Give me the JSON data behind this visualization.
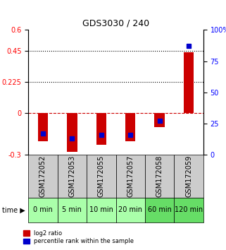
{
  "title": "GDS3030 / 240",
  "samples": [
    "GSM172052",
    "GSM172053",
    "GSM172055",
    "GSM172057",
    "GSM172058",
    "GSM172059"
  ],
  "time_labels": [
    "0 min",
    "5 min",
    "10 min",
    "20 min",
    "60 min",
    "120 min"
  ],
  "log2_ratio": [
    -0.2,
    -0.28,
    -0.23,
    -0.2,
    -0.1,
    0.44
  ],
  "percentile_rank": [
    17,
    13,
    16,
    16,
    27,
    87
  ],
  "ylim_left": [
    -0.3,
    0.6
  ],
  "ylim_right": [
    0,
    100
  ],
  "yticks_left": [
    -0.3,
    0,
    0.225,
    0.45,
    0.6
  ],
  "yticks_right": [
    0,
    25,
    50,
    75,
    100
  ],
  "hlines": [
    0.225,
    0.45
  ],
  "bar_color": "#cc0000",
  "dot_color": "#0000cc",
  "zero_line_color": "#cc0000",
  "grid_color": "#000000",
  "sample_bg": "#cccccc",
  "time_bg_light": "#aaffaa",
  "time_bg_dark": "#66dd66",
  "legend_bar_label": "log2 ratio",
  "legend_dot_label": "percentile rank within the sample",
  "bar_width": 0.35,
  "percentile_scale": 0.009,
  "time_label_fontsize": 7,
  "sample_label_fontsize": 7
}
